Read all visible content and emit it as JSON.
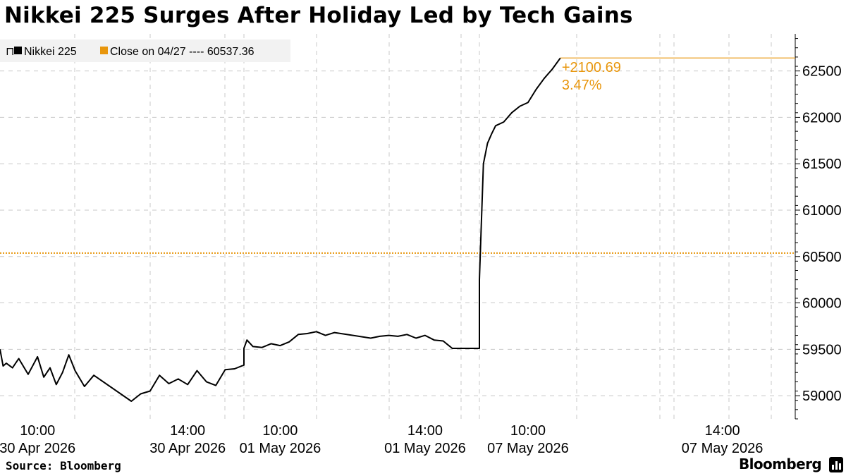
{
  "title": "Nikkei 225 Surges After Holiday Led by Tech Gains",
  "source": "Source: Bloomberg",
  "brand": "Bloomberg",
  "colors": {
    "series": "#000000",
    "reference": "#e8960c",
    "grid": "#c8c8c8"
  },
  "chart_data": {
    "type": "line",
    "legend": [
      {
        "label": "Nikkei 225",
        "color": "#000000"
      },
      {
        "label": "Close on 04/27 ---- 60537.36",
        "color": "#e8960c"
      }
    ],
    "legend_placement": "top-left",
    "ylim": [
      58750,
      62900
    ],
    "y_ticks": [
      59000,
      59500,
      60000,
      60500,
      61000,
      61500,
      62000,
      62500
    ],
    "y_axis_side": "right",
    "x_ticks": [
      {
        "time": "10:00",
        "date": "30 Apr 2026"
      },
      {
        "time": "14:00",
        "date": "30 Apr 2026"
      },
      {
        "time": "10:00",
        "date": "01 May 2026"
      },
      {
        "time": "14:00",
        "date": "01 May 2026"
      },
      {
        "time": "10:00",
        "date": "07 May 2026"
      },
      {
        "time": "14:00",
        "date": "07 May 2026"
      }
    ],
    "reference_line": {
      "label": "Close on 04/27",
      "value": 60537.36
    },
    "annotation": {
      "change": "+2100.69",
      "percent": "3.47%"
    },
    "grid": true,
    "series": [
      {
        "name": "Nikkei 225",
        "x": [
          "04-30 09:00",
          "04-30 09:05",
          "04-30 09:10",
          "04-30 09:20",
          "04-30 09:30",
          "04-30 09:45",
          "04-30 10:00",
          "04-30 10:10",
          "04-30 10:20",
          "04-30 10:30",
          "04-30 10:40",
          "04-30 10:50",
          "04-30 11:00",
          "04-30 11:15",
          "04-30 11:30",
          "04-30 12:30",
          "04-30 12:45",
          "04-30 13:00",
          "04-30 13:15",
          "04-30 13:30",
          "04-30 13:45",
          "04-30 14:00",
          "04-30 14:15",
          "04-30 14:30",
          "04-30 14:45",
          "04-30 15:00",
          "04-30 15:15",
          "04-30 15:30",
          "05-01 09:00",
          "05-01 09:05",
          "05-01 09:15",
          "05-01 09:30",
          "05-01 09:45",
          "05-01 10:00",
          "05-01 10:15",
          "05-01 10:30",
          "05-01 10:45",
          "05-01 11:00",
          "05-01 11:15",
          "05-01 11:30",
          "05-01 12:30",
          "05-01 12:45",
          "05-01 13:00",
          "05-01 13:15",
          "05-01 13:30",
          "05-01 13:45",
          "05-01 14:00",
          "05-01 14:15",
          "05-01 14:30",
          "05-01 14:45",
          "05-01 15:00",
          "05-01 15:15",
          "05-01 15:30",
          "05-07 09:00",
          "05-07 09:05",
          "05-07 09:10",
          "05-07 09:15",
          "05-07 09:20",
          "05-07 09:30",
          "05-07 09:40",
          "05-07 09:50",
          "05-07 10:00",
          "05-07 10:10",
          "05-07 10:20",
          "05-07 10:30",
          "05-07 10:40"
        ],
        "values": [
          59500,
          59320,
          59350,
          59300,
          59400,
          59230,
          59420,
          59200,
          59300,
          59120,
          59250,
          59440,
          59270,
          59100,
          59220,
          58940,
          59020,
          59050,
          59220,
          59130,
          59180,
          59120,
          59270,
          59150,
          59110,
          59280,
          59290,
          59330,
          59510,
          59600,
          59530,
          59520,
          59560,
          59540,
          59580,
          59660,
          59670,
          59690,
          59650,
          59680,
          59620,
          59640,
          59650,
          59640,
          59660,
          59620,
          59650,
          59600,
          59590,
          59510,
          59510,
          59510,
          59510,
          60250,
          61500,
          61720,
          61820,
          61910,
          61950,
          62050,
          62120,
          62160,
          62300,
          62420,
          62520,
          62640
        ]
      }
    ]
  }
}
